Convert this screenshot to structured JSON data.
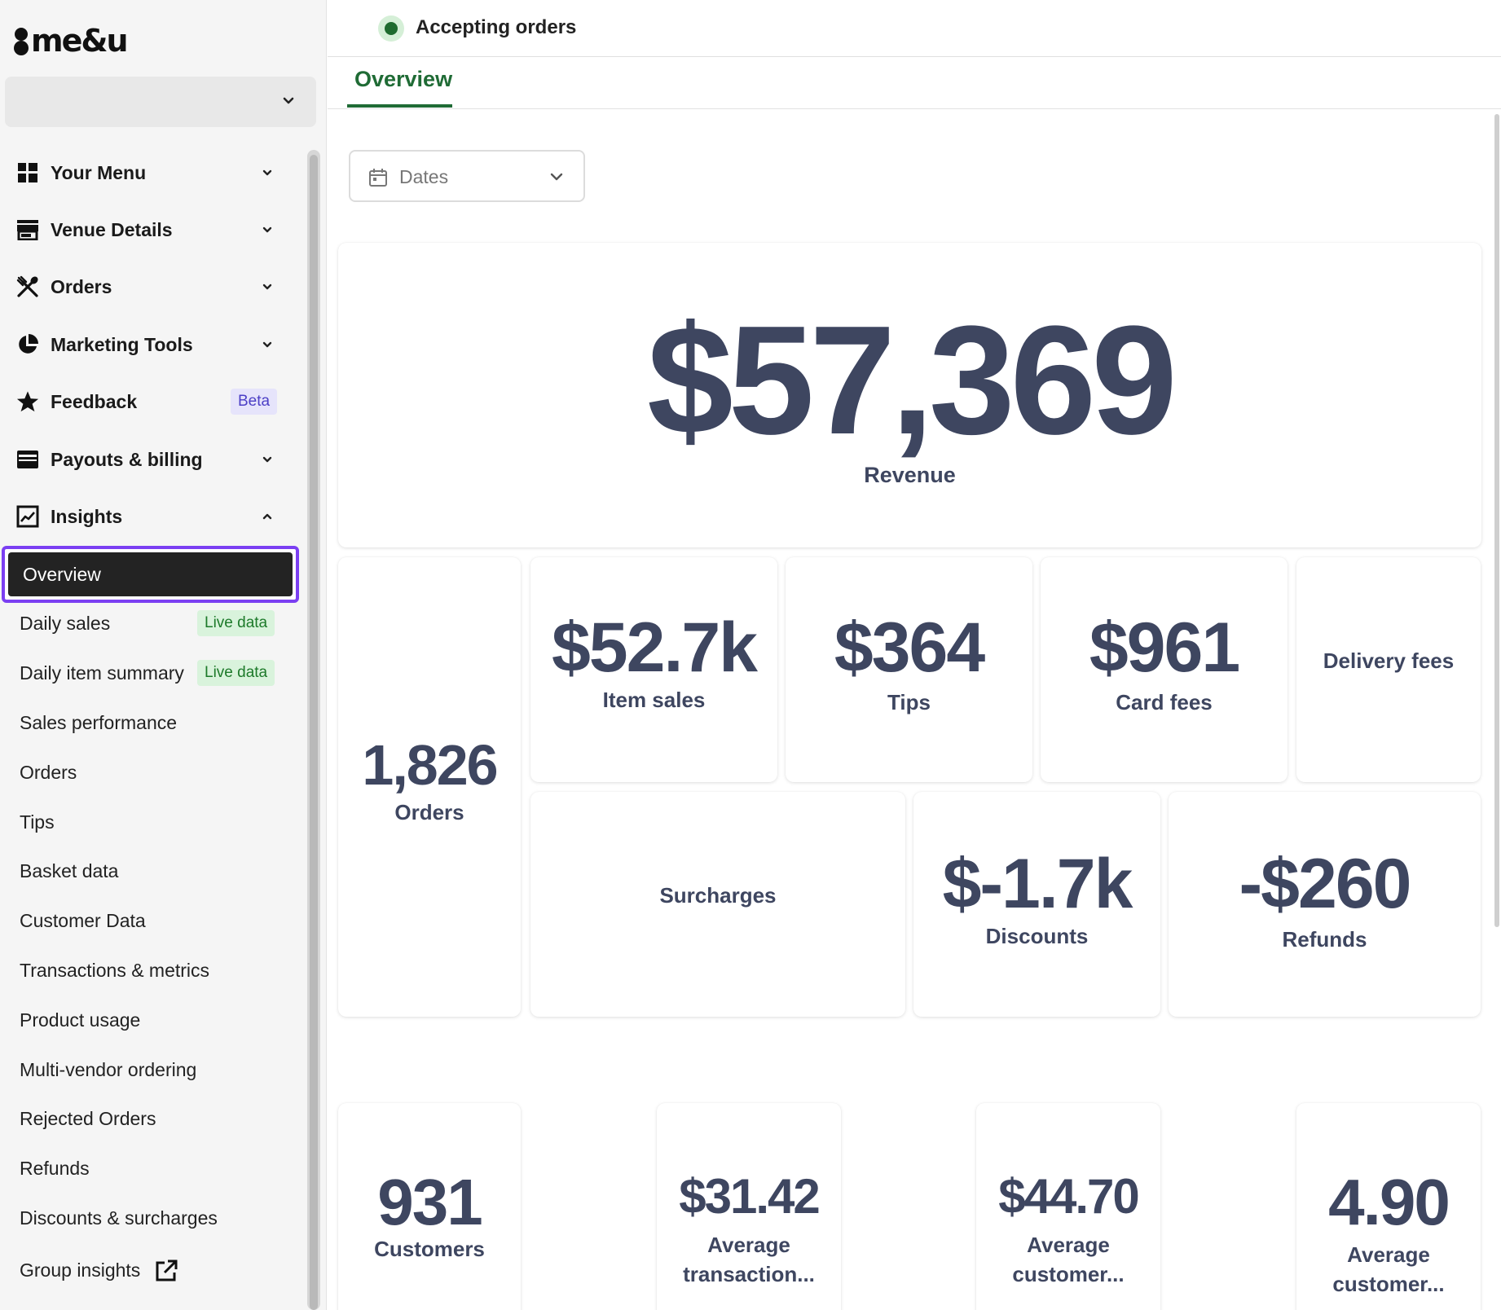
{
  "brand": {
    "logo_text": "me&u"
  },
  "status": {
    "text": "Accepting orders",
    "color": "#1e6b2e"
  },
  "sidebar": {
    "nav": [
      {
        "label": "Your Menu",
        "icon": "grid-icon"
      },
      {
        "label": "Venue Details",
        "icon": "storefront-icon"
      },
      {
        "label": "Orders",
        "icon": "utensils-icon"
      },
      {
        "label": "Marketing Tools",
        "icon": "pie-chart-icon"
      },
      {
        "label": "Feedback",
        "icon": "star-icon",
        "badge": "Beta"
      },
      {
        "label": "Payouts & billing",
        "icon": "credit-card-icon"
      },
      {
        "label": "Insights",
        "icon": "chart-icon"
      }
    ],
    "insights_items": [
      {
        "label": "Overview",
        "active": true
      },
      {
        "label": "Daily sales",
        "badge": "Live data"
      },
      {
        "label": "Daily item summary",
        "badge": "Live data"
      },
      {
        "label": "Sales performance"
      },
      {
        "label": "Orders"
      },
      {
        "label": "Tips"
      },
      {
        "label": "Basket data"
      },
      {
        "label": "Customer Data"
      },
      {
        "label": "Transactions & metrics"
      },
      {
        "label": "Product usage"
      },
      {
        "label": "Multi-vendor ordering"
      },
      {
        "label": "Rejected Orders"
      },
      {
        "label": "Refunds"
      },
      {
        "label": "Discounts & surcharges"
      },
      {
        "label": "Group insights",
        "external": true
      }
    ]
  },
  "tabs": {
    "overview": "Overview"
  },
  "filters": {
    "dates_label": "Dates"
  },
  "metrics": {
    "revenue": {
      "value": "$57,369",
      "label": "Revenue"
    },
    "orders": {
      "value": "1,826",
      "label": "Orders"
    },
    "item_sales": {
      "value": "$52.7k",
      "label": "Item sales"
    },
    "tips": {
      "value": "$364",
      "label": "Tips"
    },
    "card_fees": {
      "value": "$961",
      "label": "Card fees"
    },
    "delivery_fees": {
      "label": "Delivery fees"
    },
    "surcharges": {
      "label": "Surcharges"
    },
    "discounts": {
      "value": "$-1.7k",
      "label": "Discounts"
    },
    "refunds": {
      "value": "-$260",
      "label": "Refunds"
    },
    "customers": {
      "value": "931",
      "label": "Customers"
    },
    "avg_transaction": {
      "value": "$31.42",
      "label": "Average transaction..."
    },
    "avg_customer_spend": {
      "value": "$44.70",
      "label": "Average customer..."
    },
    "avg_customer_visits": {
      "value": "4.90",
      "label": "Average customer..."
    }
  },
  "colors": {
    "accent": "#7b3ff2",
    "tab_active": "#1f6b35",
    "metric_text": "#3e4660"
  }
}
